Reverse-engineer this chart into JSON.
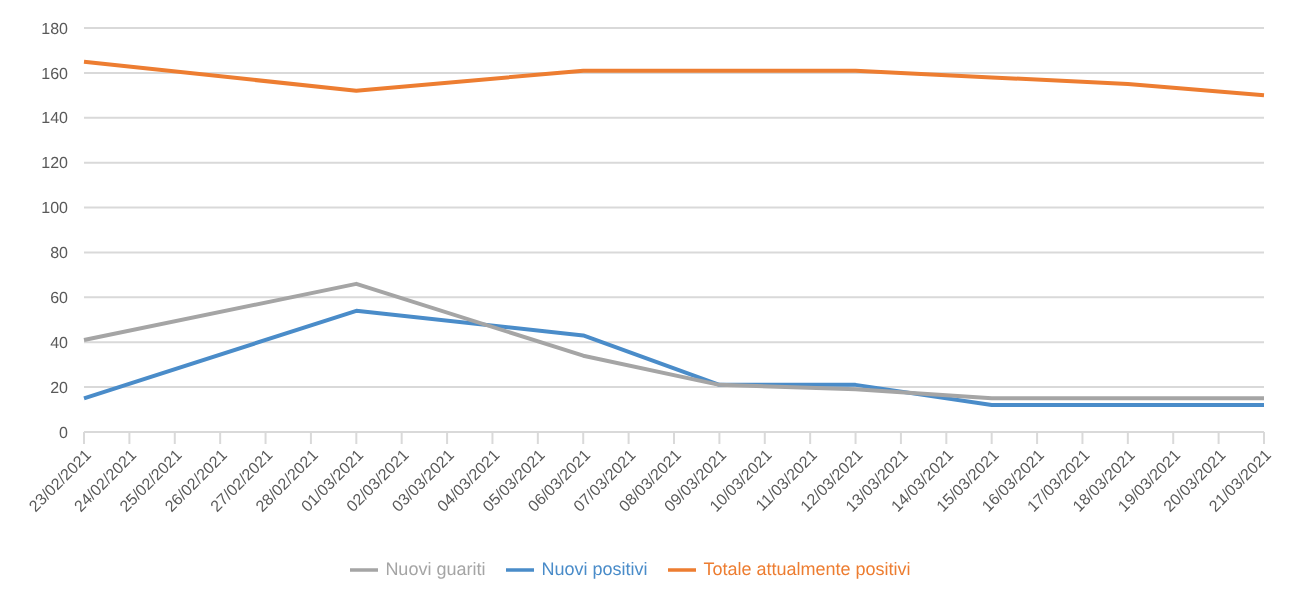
{
  "chart_data": {
    "type": "line",
    "categories": [
      "23/02/2021",
      "24/02/2021",
      "25/02/2021",
      "26/02/2021",
      "27/02/2021",
      "28/02/2021",
      "01/03/2021",
      "02/03/2021",
      "03/03/2021",
      "04/03/2021",
      "05/03/2021",
      "06/03/2021",
      "07/03/2021",
      "08/03/2021",
      "09/03/2021",
      "10/03/2021",
      "11/03/2021",
      "12/03/2021",
      "13/03/2021",
      "14/03/2021",
      "15/03/2021",
      "16/03/2021",
      "17/03/2021",
      "18/03/2021",
      "19/03/2021",
      "20/03/2021",
      "21/03/2021"
    ],
    "series": [
      {
        "name": "Nuovi positivi",
        "color": "#4a8cc9",
        "values": [
          15,
          null,
          null,
          null,
          null,
          null,
          54,
          null,
          null,
          null,
          null,
          43,
          null,
          null,
          21,
          null,
          null,
          21,
          null,
          null,
          12,
          null,
          null,
          null,
          null,
          null,
          12
        ]
      },
      {
        "name": "Totale attualmente positivi",
        "color": "#ed7d31",
        "values": [
          165,
          null,
          null,
          null,
          null,
          null,
          152,
          null,
          null,
          null,
          null,
          161,
          null,
          null,
          161,
          null,
          null,
          161,
          null,
          null,
          158,
          null,
          null,
          155,
          null,
          null,
          150
        ]
      },
      {
        "name": "Nuovi guariti",
        "color": "#a5a5a5",
        "values": [
          41,
          null,
          null,
          null,
          null,
          null,
          66,
          null,
          null,
          null,
          null,
          34,
          null,
          null,
          21,
          null,
          null,
          19,
          null,
          null,
          15,
          null,
          null,
          null,
          null,
          null,
          15
        ]
      }
    ],
    "ylim": [
      0,
      180
    ],
    "yticks": [
      0,
      20,
      40,
      60,
      80,
      100,
      120,
      140,
      160,
      180
    ],
    "grid": "y",
    "legend": "bottom",
    "marker": "none",
    "line_style": "solid"
  }
}
